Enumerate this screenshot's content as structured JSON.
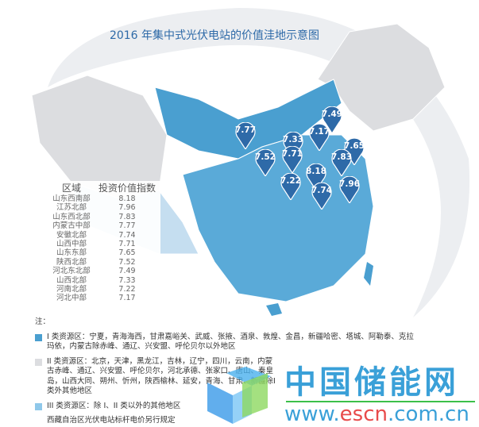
{
  "title": "2016 年集中式光伏电站的价值洼地示意图",
  "colors": {
    "class1": "#4a9fd0",
    "class2": "#dcdde0",
    "class3": "#8fc8ea",
    "pin": "#2e6aa8",
    "title": "#2e6aa8"
  },
  "table": {
    "headers": [
      "区域",
      "投资价值指数"
    ],
    "rows": [
      [
        "山东西南部",
        "8.18"
      ],
      [
        "江苏北部",
        "7.96"
      ],
      [
        "山东西北部",
        "7.83"
      ],
      [
        "内蒙古中部",
        "7.77"
      ],
      [
        "安徽北部",
        "7.74"
      ],
      [
        "山西中部",
        "7.71"
      ],
      [
        "山东东部",
        "7.65"
      ],
      [
        "陕西北部",
        "7.52"
      ],
      [
        "河北东北部",
        "7.49"
      ],
      [
        "山西北部",
        "7.33"
      ],
      [
        "河南北部",
        "7.22"
      ],
      [
        "河北中部",
        "7.17"
      ]
    ]
  },
  "pins": [
    "7.77",
    "7.52",
    "7.33",
    "7.71",
    "7.17",
    "7.49",
    "7.65",
    "7.83",
    "8.18",
    "7.22",
    "7.74",
    "7.96"
  ],
  "notes": {
    "heading": "注：",
    "class1": "I 类资源区：宁夏，青海海西，甘肃嘉峪关、武威、张掖、酒泉、敦煌、金昌，新疆哈密、塔城、阿勒泰、克拉玛依，内蒙古除赤峰、通辽、兴安盟、呼伦贝尔以外地区",
    "class2": "II 类资源区：北京，天津，黑龙江，吉林，辽宁，四川，云南，内蒙古赤峰、通辽、兴安盟、呼伦贝尔，河北承德、张家口、唐山、秦皇岛，山西大同、朔州、忻州，陕西榆林、延安，青海、甘肃、新疆除I类外其他地区",
    "class3": "III 类资源区：除 I、II 类以外的其他地区",
    "tibet": "西藏自治区光伏电站标杆电价另行规定"
  },
  "watermark": {
    "cn": "中国储能网",
    "url_pre": "www.",
    "url_mid": "escn",
    "url_post": ".com.cn"
  }
}
